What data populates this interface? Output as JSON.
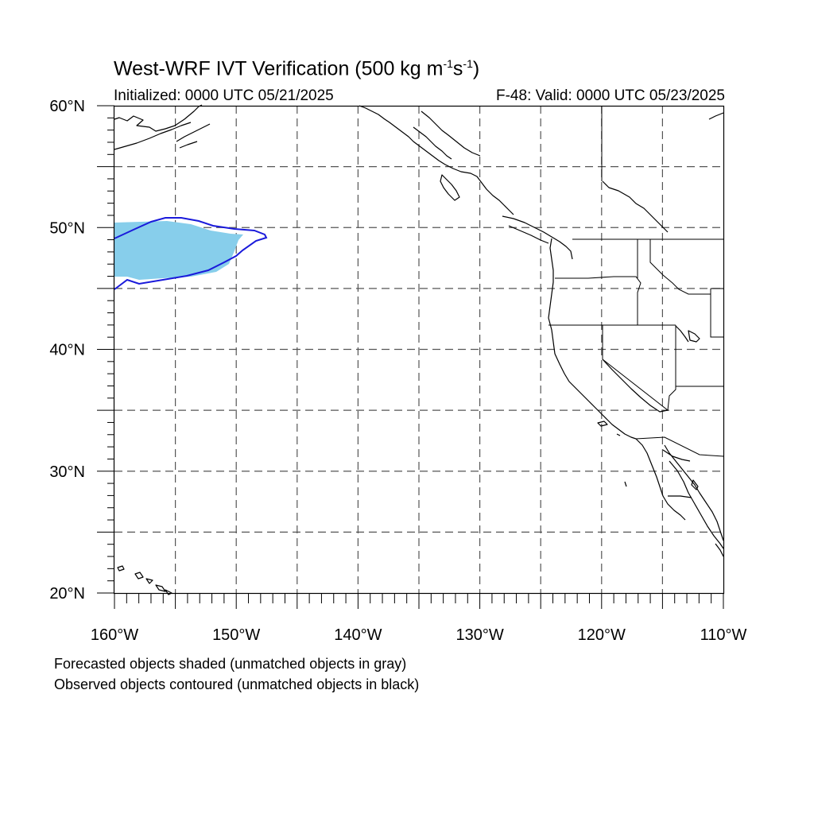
{
  "title": {
    "prefix": "West-WRF IVT Verification (500 kg m",
    "exp1": "-1",
    "mid": "s",
    "exp2": "-1",
    "suffix": ")"
  },
  "initialized": "Initialized: 0000 UTC 05/21/2025",
  "valid": "F-48: Valid: 0000 UTC 05/23/2025",
  "notes": {
    "forecast": "Forecasted objects shaded (unmatched objects in gray)",
    "observed": "Observed objects contoured (unmatched objects in black)"
  },
  "map": {
    "lon_range": [
      -160,
      -110
    ],
    "lat_range": [
      20,
      60
    ],
    "lat_labels": [
      "60°N",
      "50°N",
      "40°N",
      "30°N",
      "20°N"
    ],
    "lon_labels": [
      "160°W",
      "150°W",
      "140°W",
      "130°W",
      "120°W",
      "110°W"
    ],
    "gridlines": "dashed every 5°",
    "colors": {
      "forecast_fill": "#87ceeb",
      "observed_contour": "#1a1adb",
      "coast": "#000000",
      "grid": "#555555"
    }
  }
}
